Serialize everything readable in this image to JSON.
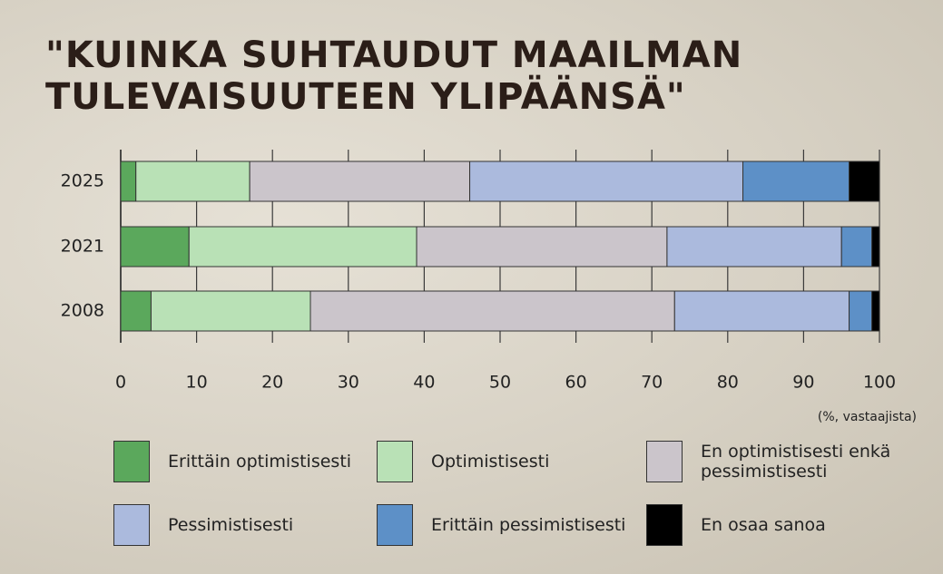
{
  "chart_data": {
    "type": "stacked_barh",
    "title": "\"KUINKA SUHTAUDUT MAAILMAN TULEVAISUUTEEN YLIPÄÄNSÄ\"",
    "note": "(%, vastaajista)",
    "categories": [
      "2025",
      "2021",
      "2008"
    ],
    "series": [
      {
        "name": "Erittäin optimistisesti",
        "color": "#5ba85c",
        "values": [
          2,
          9,
          4
        ]
      },
      {
        "name": "Optimistisesti",
        "color": "#b9e1b6",
        "values": [
          15,
          30,
          21
        ]
      },
      {
        "name": "En optimistisesti enkä pessimistisesti",
        "color": "#cbc5cb",
        "values": [
          29,
          33,
          48
        ]
      },
      {
        "name": "Pessimistisesti",
        "color": "#abbadd",
        "values": [
          36,
          23,
          23
        ]
      },
      {
        "name": "Erittäin pessimistisesti",
        "color": "#5d90c7",
        "values": [
          14,
          4,
          3
        ]
      },
      {
        "name": "En osaa sanoa",
        "color": "#000000",
        "values": [
          4,
          1,
          1
        ]
      }
    ],
    "xlim": [
      0,
      100
    ],
    "xticks": [
      0,
      10,
      20,
      30,
      40,
      50,
      60,
      70,
      80,
      90,
      100
    ],
    "grid": true
  }
}
